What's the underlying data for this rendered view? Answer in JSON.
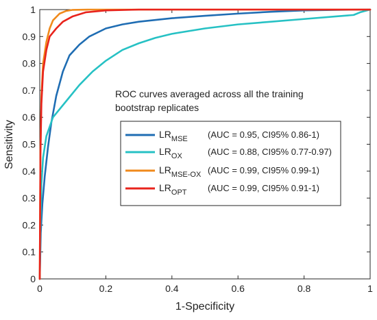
{
  "chart_data": {
    "type": "line",
    "annotation_lines": [
      "ROC curves averaged across all the training",
      "bootstrap replicates"
    ],
    "xlabel": "1-Specificity",
    "ylabel": "Sensitivity",
    "xlim": [
      0,
      1
    ],
    "ylim": [
      0,
      1
    ],
    "x_ticks": [
      0,
      0.2,
      0.4,
      0.6,
      0.8,
      1
    ],
    "x_tick_labels": [
      "0",
      "0.2",
      "0.4",
      "0.6",
      "0.8",
      "1"
    ],
    "y_ticks": [
      0,
      0.1,
      0.2,
      0.3,
      0.4,
      0.5,
      0.6,
      0.7,
      0.8,
      0.9,
      1
    ],
    "y_tick_labels": [
      "0",
      "0.1",
      "0.2",
      "0.3",
      "0.4",
      "0.5",
      "0.6",
      "0.7",
      "0.8",
      "0.9",
      "1"
    ],
    "grid": false,
    "legend_position": "center-right",
    "series": [
      {
        "name": "LR",
        "subscript": "MSE",
        "legend_detail": "(AUC = 0.95, CI95% 0.86-1)",
        "color": "#1f6db3",
        "points": [
          [
            0,
            0
          ],
          [
            0.003,
            0.17
          ],
          [
            0.008,
            0.28
          ],
          [
            0.015,
            0.38
          ],
          [
            0.025,
            0.49
          ],
          [
            0.035,
            0.58
          ],
          [
            0.05,
            0.68
          ],
          [
            0.07,
            0.77
          ],
          [
            0.09,
            0.83
          ],
          [
            0.12,
            0.87
          ],
          [
            0.15,
            0.9
          ],
          [
            0.2,
            0.93
          ],
          [
            0.25,
            0.945
          ],
          [
            0.3,
            0.955
          ],
          [
            0.4,
            0.968
          ],
          [
            0.5,
            0.977
          ],
          [
            0.6,
            0.985
          ],
          [
            0.7,
            0.992
          ],
          [
            0.8,
            0.997
          ],
          [
            0.9,
            0.999
          ],
          [
            1,
            1
          ]
        ]
      },
      {
        "name": "LR",
        "subscript": "OX",
        "legend_detail": "(AUC = 0.88, CI95% 0.77-0.97)",
        "color": "#26c1c4",
        "points": [
          [
            0,
            0
          ],
          [
            0.002,
            0.2
          ],
          [
            0.005,
            0.35
          ],
          [
            0.01,
            0.45
          ],
          [
            0.02,
            0.53
          ],
          [
            0.04,
            0.6
          ],
          [
            0.08,
            0.66
          ],
          [
            0.12,
            0.72
          ],
          [
            0.16,
            0.77
          ],
          [
            0.2,
            0.81
          ],
          [
            0.25,
            0.85
          ],
          [
            0.3,
            0.875
          ],
          [
            0.35,
            0.895
          ],
          [
            0.4,
            0.91
          ],
          [
            0.5,
            0.93
          ],
          [
            0.6,
            0.945
          ],
          [
            0.7,
            0.955
          ],
          [
            0.8,
            0.965
          ],
          [
            0.9,
            0.975
          ],
          [
            0.95,
            0.98
          ],
          [
            0.97,
            0.99
          ],
          [
            1,
            1
          ]
        ]
      },
      {
        "name": "LR",
        "subscript": "MSE-OX",
        "legend_detail": "(AUC = 0.99, CI95% 0.99-1)",
        "color": "#f08a1c",
        "points": [
          [
            0,
            0
          ],
          [
            0.002,
            0.48
          ],
          [
            0.005,
            0.68
          ],
          [
            0.01,
            0.8
          ],
          [
            0.02,
            0.88
          ],
          [
            0.03,
            0.93
          ],
          [
            0.04,
            0.96
          ],
          [
            0.06,
            0.985
          ],
          [
            0.08,
            0.995
          ],
          [
            0.1,
            0.999
          ],
          [
            0.15,
            1
          ],
          [
            1,
            1
          ]
        ]
      },
      {
        "name": "LR",
        "subscript": "OPT",
        "legend_detail": "(AUC = 0.99, CI95% 0.91-1)",
        "color": "#e8231c",
        "points": [
          [
            0,
            0
          ],
          [
            0.002,
            0.45
          ],
          [
            0.005,
            0.65
          ],
          [
            0.01,
            0.77
          ],
          [
            0.02,
            0.85
          ],
          [
            0.03,
            0.9
          ],
          [
            0.05,
            0.93
          ],
          [
            0.07,
            0.955
          ],
          [
            0.1,
            0.975
          ],
          [
            0.14,
            0.99
          ],
          [
            0.2,
            0.997
          ],
          [
            0.3,
            1
          ],
          [
            1,
            1
          ]
        ]
      }
    ]
  }
}
